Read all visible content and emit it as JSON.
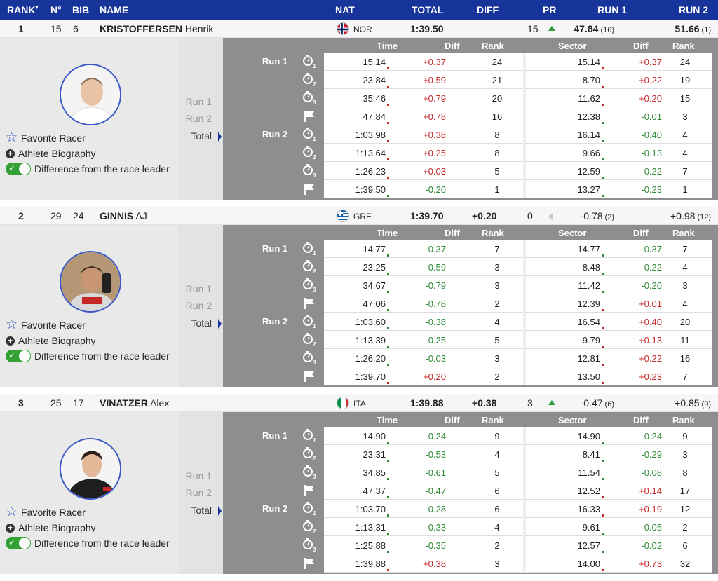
{
  "header": {
    "rank": "RANK",
    "rank_sort": "▾",
    "no": "N°",
    "bib": "BIB",
    "name": "NAME",
    "nat": "NAT",
    "total": "TOTAL",
    "diff": "DIFF",
    "pr": "PR",
    "run1": "RUN 1",
    "run2": "RUN 2"
  },
  "colors": {
    "header_bg": "#17349a",
    "positive": "#c62828",
    "negative": "#2e8a36",
    "toggle_on": "#33a133"
  },
  "detail_labels": {
    "time": "Time",
    "diff": "Diff",
    "rank": "Rank",
    "sector": "Sector",
    "sdiff": "Diff",
    "srank": "Rank",
    "run1": "Run 1",
    "run2": "Run 2",
    "total": "Total",
    "favorite": "Favorite Racer",
    "biography": "Athlete Biography",
    "difference": "Difference from the race leader"
  },
  "icons": [
    "stopwatch-1-icon",
    "stopwatch-2-icon",
    "stopwatch-3-icon",
    "finish-flag-icon"
  ],
  "racers": [
    {
      "rank": "1",
      "no": "15",
      "bib": "6",
      "last": "KRISTOFFERSEN",
      "first": "Henrik",
      "nat": "NOR",
      "flag": "norway",
      "total": "1:39.50",
      "diff": "",
      "pr": "15",
      "pr_trend": "up",
      "run1": "47.84",
      "run1_rank": "(16)",
      "run2": "51.66",
      "run2_rank": "(1)",
      "run1_bold": true,
      "run2_bold": true,
      "splits": [
        {
          "time": "15.14",
          "diff": "+0.37",
          "rank": "24",
          "sector": "15.14",
          "sdiff": "+0.37",
          "srank": "24"
        },
        {
          "time": "23.84",
          "diff": "+0.59",
          "rank": "21",
          "sector": "8.70",
          "sdiff": "+0.22",
          "srank": "19"
        },
        {
          "time": "35.46",
          "diff": "+0.79",
          "rank": "20",
          "sector": "11.62",
          "sdiff": "+0.20",
          "srank": "15"
        },
        {
          "time": "47.84",
          "diff": "+0.78",
          "rank": "16",
          "sector": "12.38",
          "sdiff": "-0.01",
          "srank": "3"
        },
        {
          "time": "1:03.98",
          "diff": "+0.38",
          "rank": "8",
          "sector": "16.14",
          "sdiff": "-0.40",
          "srank": "4"
        },
        {
          "time": "1:13.64",
          "diff": "+0.25",
          "rank": "8",
          "sector": "9.66",
          "sdiff": "-0.13",
          "srank": "4"
        },
        {
          "time": "1:26.23",
          "diff": "+0.03",
          "rank": "5",
          "sector": "12.59",
          "sdiff": "-0.22",
          "srank": "7"
        },
        {
          "time": "1:39.50",
          "diff": "-0.20",
          "rank": "1",
          "sector": "13.27",
          "sdiff": "-0.23",
          "srank": "1"
        }
      ]
    },
    {
      "rank": "2",
      "no": "29",
      "bib": "24",
      "last": "GINNIS",
      "first": "AJ",
      "nat": "GRE",
      "flag": "greece",
      "total": "1:39.70",
      "diff": "+0.20",
      "pr": "0",
      "pr_trend": "none",
      "run1": "-0.78",
      "run1_rank": "(2)",
      "run2": "+0.98",
      "run2_rank": "(12)",
      "run1_bold": false,
      "run2_bold": false,
      "splits": [
        {
          "time": "14.77",
          "diff": "-0.37",
          "rank": "7",
          "sector": "14.77",
          "sdiff": "-0.37",
          "srank": "7"
        },
        {
          "time": "23.25",
          "diff": "-0.59",
          "rank": "3",
          "sector": "8.48",
          "sdiff": "-0.22",
          "srank": "4"
        },
        {
          "time": "34.67",
          "diff": "-0.79",
          "rank": "3",
          "sector": "11.42",
          "sdiff": "-0.20",
          "srank": "3"
        },
        {
          "time": "47.06",
          "diff": "-0.78",
          "rank": "2",
          "sector": "12.39",
          "sdiff": "+0.01",
          "srank": "4"
        },
        {
          "time": "1:03.60",
          "diff": "-0.38",
          "rank": "4",
          "sector": "16.54",
          "sdiff": "+0.40",
          "srank": "20"
        },
        {
          "time": "1:13.39",
          "diff": "-0.25",
          "rank": "5",
          "sector": "9.79",
          "sdiff": "+0.13",
          "srank": "11"
        },
        {
          "time": "1:26.20",
          "diff": "-0.03",
          "rank": "3",
          "sector": "12.81",
          "sdiff": "+0.22",
          "srank": "16"
        },
        {
          "time": "1:39.70",
          "diff": "+0.20",
          "rank": "2",
          "sector": "13.50",
          "sdiff": "+0.23",
          "srank": "7"
        }
      ]
    },
    {
      "rank": "3",
      "no": "25",
      "bib": "17",
      "last": "VINATZER",
      "first": "Alex",
      "nat": "ITA",
      "flag": "italy",
      "total": "1:39.88",
      "diff": "+0.38",
      "pr": "3",
      "pr_trend": "up",
      "run1": "-0.47",
      "run1_rank": "(6)",
      "run2": "+0.85",
      "run2_rank": "(9)",
      "run1_bold": false,
      "run2_bold": false,
      "splits": [
        {
          "time": "14.90",
          "diff": "-0.24",
          "rank": "9",
          "sector": "14.90",
          "sdiff": "-0.24",
          "srank": "9"
        },
        {
          "time": "23.31",
          "diff": "-0.53",
          "rank": "4",
          "sector": "8.41",
          "sdiff": "-0.29",
          "srank": "3"
        },
        {
          "time": "34.85",
          "diff": "-0.61",
          "rank": "5",
          "sector": "11.54",
          "sdiff": "-0.08",
          "srank": "8"
        },
        {
          "time": "47.37",
          "diff": "-0.47",
          "rank": "6",
          "sector": "12.52",
          "sdiff": "+0.14",
          "srank": "17"
        },
        {
          "time": "1:03.70",
          "diff": "-0.28",
          "rank": "6",
          "sector": "16.33",
          "sdiff": "+0.19",
          "srank": "12"
        },
        {
          "time": "1:13.31",
          "diff": "-0.33",
          "rank": "4",
          "sector": "9.61",
          "sdiff": "-0.05",
          "srank": "2"
        },
        {
          "time": "1:25.88",
          "diff": "-0.35",
          "rank": "2",
          "sector": "12.57",
          "sdiff": "-0.02",
          "srank": "6"
        },
        {
          "time": "1:39.88",
          "diff": "+0.38",
          "rank": "3",
          "sector": "14.00",
          "sdiff": "+0.73",
          "srank": "32"
        }
      ]
    }
  ]
}
